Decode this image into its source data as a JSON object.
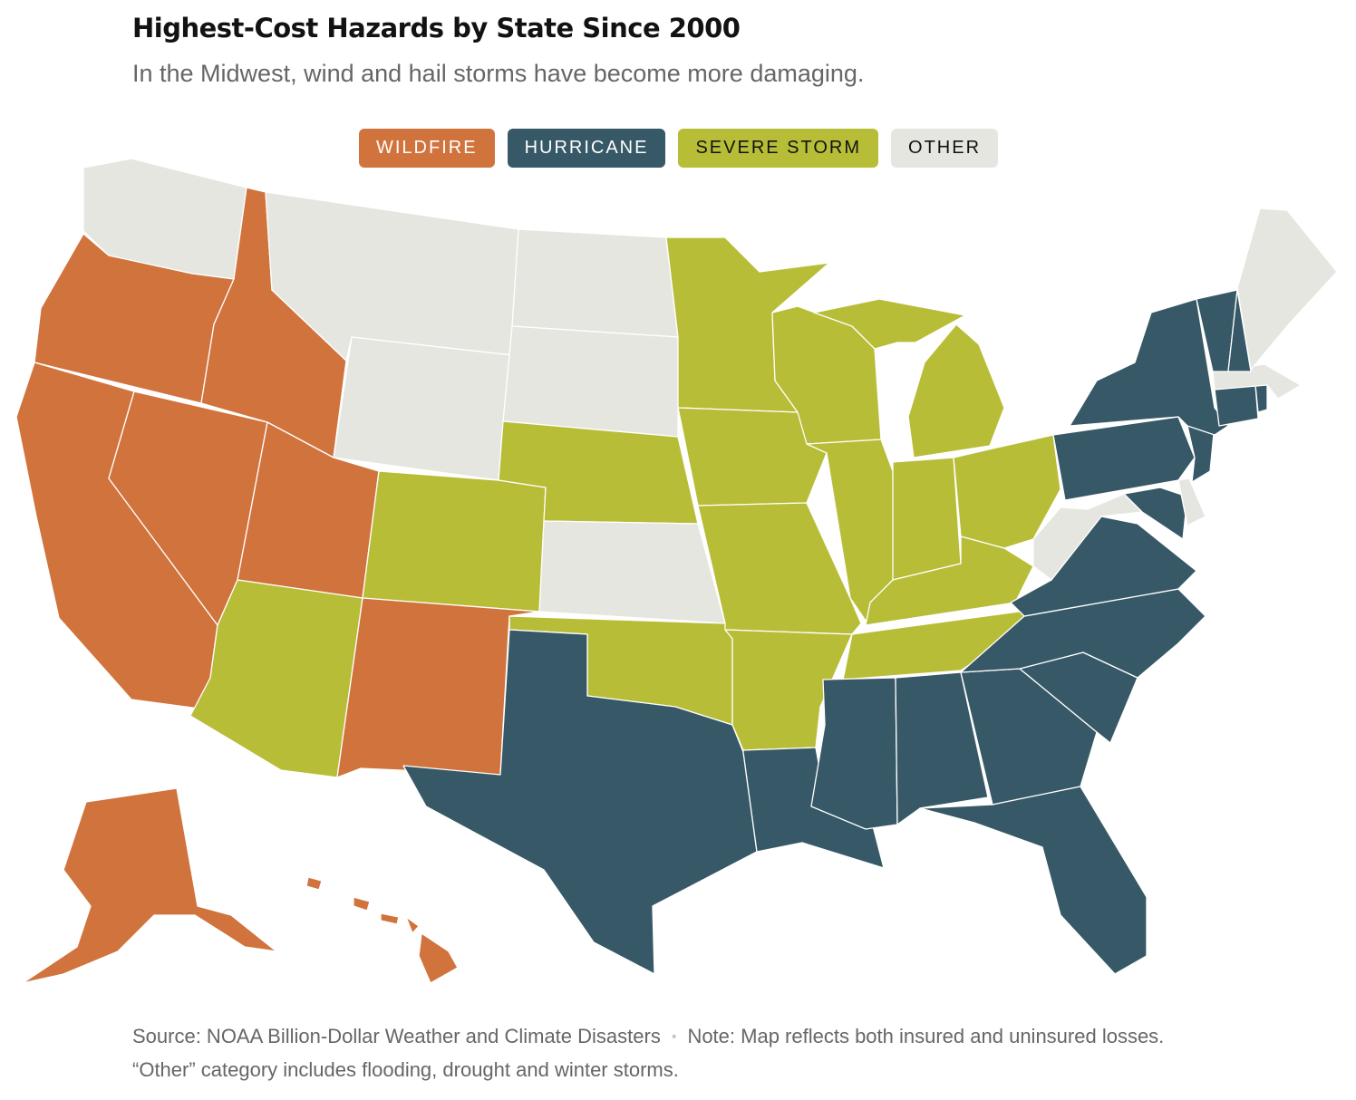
{
  "title": "Highest-Cost Hazards by State Since 2000",
  "subtitle": "In the Midwest, wind and hail storms have become more damaging.",
  "legend": [
    {
      "label": "WILDFIRE",
      "key": "wildfire"
    },
    {
      "label": "HURRICANE",
      "key": "hurricane"
    },
    {
      "label": "SEVERE STORM",
      "key": "severe_storm"
    },
    {
      "label": "OTHER",
      "key": "other"
    }
  ],
  "colors": {
    "wildfire": "#d1733d",
    "hurricane": "#375866",
    "severe_storm": "#b8bd38",
    "other": "#e6e6e0",
    "wildfire_text": "#ffffff",
    "hurricane_text": "#ffffff",
    "severe_storm_text": "#121212",
    "other_text": "#121212"
  },
  "states": {
    "WA": "other",
    "MT": "other",
    "ND": "other",
    "SD": "other",
    "WY": "other",
    "KS": "other",
    "WV": "other",
    "ME": "other",
    "MA": "other",
    "DE": "other",
    "OR": "wildfire",
    "ID": "wildfire",
    "CA": "wildfire",
    "NV": "wildfire",
    "UT": "wildfire",
    "NM": "wildfire",
    "AK": "wildfire",
    "HI": "wildfire",
    "MN": "severe_storm",
    "WI": "severe_storm",
    "MI": "severe_storm",
    "IA": "severe_storm",
    "NE": "severe_storm",
    "CO": "severe_storm",
    "AZ": "severe_storm",
    "MO": "severe_storm",
    "IL": "severe_storm",
    "IN": "severe_storm",
    "OH": "severe_storm",
    "KY": "severe_storm",
    "TN": "severe_storm",
    "AR": "severe_storm",
    "OK": "severe_storm",
    "TX": "hurricane",
    "LA": "hurricane",
    "MS": "hurricane",
    "AL": "hurricane",
    "GA": "hurricane",
    "FL": "hurricane",
    "SC": "hurricane",
    "NC": "hurricane",
    "VA": "hurricane",
    "MD": "hurricane",
    "PA": "hurricane",
    "NJ": "hurricane",
    "NY": "hurricane",
    "CT": "hurricane",
    "RI": "hurricane",
    "VT": "hurricane",
    "NH": "hurricane"
  },
  "footer": {
    "source": "Source: NOAA Billion-Dollar Weather and Climate Disasters",
    "separator": "•",
    "note": "Note: Map reflects both insured and uninsured losses. “Other” category includes flooding, drought and winter storms."
  }
}
